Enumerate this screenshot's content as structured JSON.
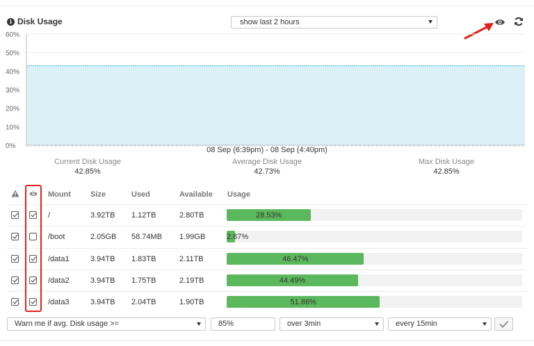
{
  "panel": {
    "title": "Disk Usage",
    "range_select": "show last 2 hours"
  },
  "chart_data": {
    "type": "area",
    "y_ticks": [
      "60%",
      "50%",
      "40%",
      "30%",
      "20%",
      "10%",
      "0%"
    ],
    "ylim": [
      0,
      60
    ],
    "series": [
      {
        "values": [
          42.9,
          42.9
        ]
      }
    ],
    "date_range": "08 Sep (6:39pm) - 08 Sep (4:40pm)"
  },
  "stats": {
    "current_label": "Current Disk Usage",
    "current_value": "42.85%",
    "average_label": "Average Disk Usage",
    "average_value": "42.73%",
    "max_label": "Max Disk Usage",
    "max_value": "42.85%"
  },
  "table": {
    "headers": {
      "mount": "Mount",
      "size": "Size",
      "used": "Used",
      "available": "Available",
      "usage": "Usage"
    },
    "rows": [
      {
        "alert": true,
        "visible": true,
        "mount": "/",
        "size": "3.92TB",
        "used": "1.12TB",
        "available": "2.80TB",
        "usage_label": "28.53%",
        "usage": 28.53
      },
      {
        "alert": true,
        "visible": false,
        "mount": "/boot",
        "size": "2.05GB",
        "used": "58.74MB",
        "available": "1.99GB",
        "usage_label": "2.87%",
        "usage": 2.87
      },
      {
        "alert": true,
        "visible": true,
        "mount": "/data1",
        "size": "3.94TB",
        "used": "1.83TB",
        "available": "2.11TB",
        "usage_label": "46.47%",
        "usage": 46.47
      },
      {
        "alert": true,
        "visible": true,
        "mount": "/data2",
        "size": "3.94TB",
        "used": "1.75TB",
        "available": "2.19TB",
        "usage_label": "44.49%",
        "usage": 44.49
      },
      {
        "alert": true,
        "visible": true,
        "mount": "/data3",
        "size": "3.94TB",
        "used": "2.04TB",
        "available": "1.90TB",
        "usage_label": "51.86%",
        "usage": 51.86
      }
    ]
  },
  "alert_form": {
    "condition": "Warn me if avg. Disk usage >=",
    "threshold": "85%",
    "duration": "over 3min",
    "frequency": "every 15min"
  },
  "colors": {
    "bar": "#5cb85c",
    "area_fill": "#dcf0f8",
    "area_line": "#5bc0de",
    "highlight": "#e0201b"
  },
  "icons": {
    "info": "info-icon",
    "eye": "eye-icon",
    "refresh": "refresh-icon",
    "alert": "warning-icon",
    "confirm": "checkmark-icon"
  }
}
